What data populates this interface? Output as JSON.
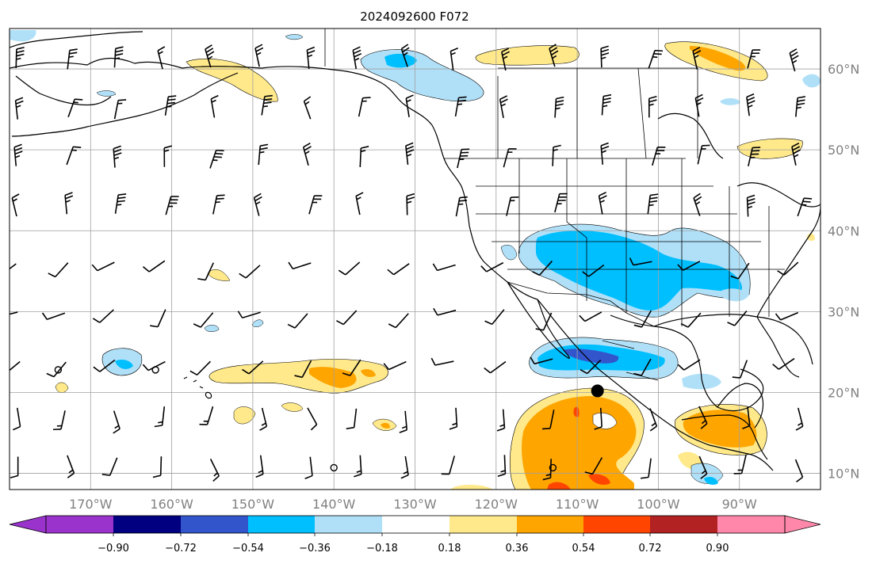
{
  "title": "2024092600 F072",
  "map": {
    "lon_range": [
      -180,
      -80
    ],
    "lat_range": [
      8,
      65
    ],
    "longitude_ticks": [
      "170°W",
      "160°W",
      "150°W",
      "140°W",
      "130°W",
      "120°W",
      "110°W",
      "100°W",
      "90°W"
    ],
    "latitude_ticks": [
      "60°N",
      "50°N",
      "40°N",
      "30°N",
      "20°N",
      "10°N"
    ],
    "gridlines": true,
    "marker": {
      "lon": -107.5,
      "lat": 20.2,
      "type": "filled-circle"
    },
    "open_circles": [
      {
        "lon": -174,
        "lat": 22.8
      },
      {
        "lon": -162,
        "lat": 22.8
      },
      {
        "lon": -140,
        "lat": 10.7
      },
      {
        "lon": -113,
        "lat": 10.7
      }
    ]
  },
  "colorbar": {
    "orientation": "horizontal",
    "extend": "both",
    "labels": [
      "−0.90",
      "−0.72",
      "−0.54",
      "−0.36",
      "−0.18",
      "0.18",
      "0.36",
      "0.54",
      "0.72",
      "0.90"
    ],
    "colors": [
      "#9933cc",
      "#000080",
      "#3355cc",
      "#00bfff",
      "#b0e0f8",
      "#ffffff",
      "#ffe98a",
      "#ffa500",
      "#ff4500",
      "#b22222",
      "#ff88aa"
    ]
  },
  "icons": {
    "barb": "wind-barb-icon",
    "marker": "location-dot-icon"
  }
}
